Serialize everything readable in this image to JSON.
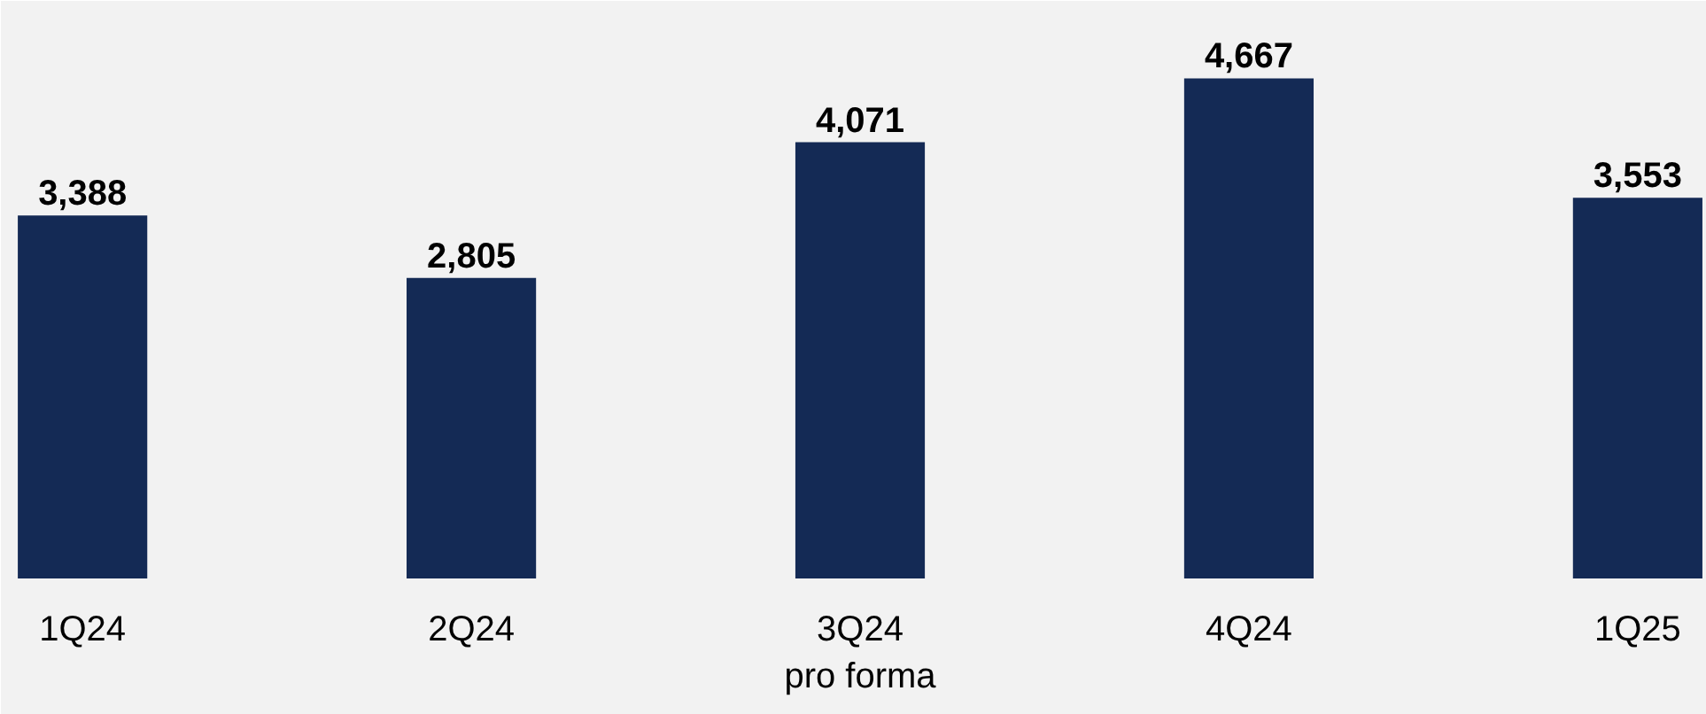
{
  "chart_data": {
    "type": "bar",
    "categories": [
      "1Q24",
      "2Q24",
      "3Q24\npro forma",
      "4Q24",
      "1Q25"
    ],
    "values": [
      3388,
      2805,
      4071,
      4667,
      3553
    ],
    "color": "#142a55",
    "value_labels": [
      "3,388",
      "2,805",
      "4,071",
      "4,667",
      "3,553"
    ]
  }
}
